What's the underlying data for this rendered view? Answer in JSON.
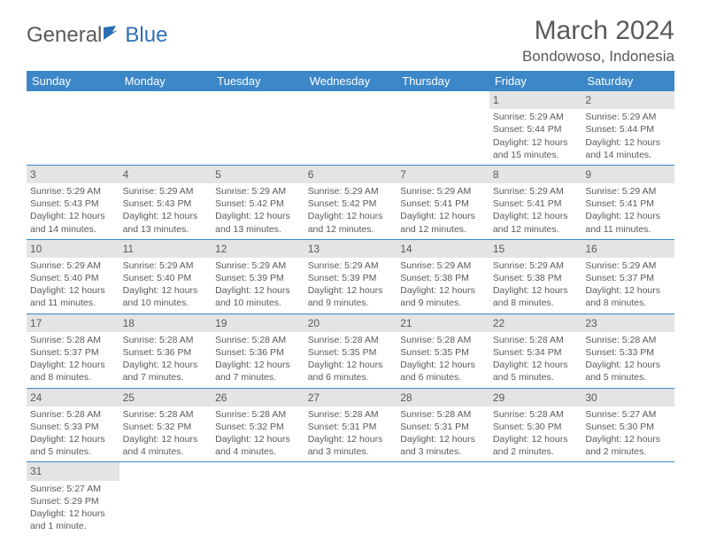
{
  "logo": {
    "part1": "General",
    "part2": "Blue"
  },
  "title": "March 2024",
  "location": "Bondowoso, Indonesia",
  "colors": {
    "header_bg": "#3b87c8",
    "header_text": "#ffffff",
    "daynum_bg": "#e4e4e4",
    "border": "#3b87c8",
    "text": "#5a5a5a",
    "logo_blue": "#2d6fb5"
  },
  "daysOfWeek": [
    "Sunday",
    "Monday",
    "Tuesday",
    "Wednesday",
    "Thursday",
    "Friday",
    "Saturday"
  ],
  "weeks": [
    [
      null,
      null,
      null,
      null,
      null,
      {
        "d": "1",
        "sr": "5:29 AM",
        "ss": "5:44 PM",
        "dl": "12 hours and 15 minutes."
      },
      {
        "d": "2",
        "sr": "5:29 AM",
        "ss": "5:44 PM",
        "dl": "12 hours and 14 minutes."
      }
    ],
    [
      {
        "d": "3",
        "sr": "5:29 AM",
        "ss": "5:43 PM",
        "dl": "12 hours and 14 minutes."
      },
      {
        "d": "4",
        "sr": "5:29 AM",
        "ss": "5:43 PM",
        "dl": "12 hours and 13 minutes."
      },
      {
        "d": "5",
        "sr": "5:29 AM",
        "ss": "5:42 PM",
        "dl": "12 hours and 13 minutes."
      },
      {
        "d": "6",
        "sr": "5:29 AM",
        "ss": "5:42 PM",
        "dl": "12 hours and 12 minutes."
      },
      {
        "d": "7",
        "sr": "5:29 AM",
        "ss": "5:41 PM",
        "dl": "12 hours and 12 minutes."
      },
      {
        "d": "8",
        "sr": "5:29 AM",
        "ss": "5:41 PM",
        "dl": "12 hours and 12 minutes."
      },
      {
        "d": "9",
        "sr": "5:29 AM",
        "ss": "5:41 PM",
        "dl": "12 hours and 11 minutes."
      }
    ],
    [
      {
        "d": "10",
        "sr": "5:29 AM",
        "ss": "5:40 PM",
        "dl": "12 hours and 11 minutes."
      },
      {
        "d": "11",
        "sr": "5:29 AM",
        "ss": "5:40 PM",
        "dl": "12 hours and 10 minutes."
      },
      {
        "d": "12",
        "sr": "5:29 AM",
        "ss": "5:39 PM",
        "dl": "12 hours and 10 minutes."
      },
      {
        "d": "13",
        "sr": "5:29 AM",
        "ss": "5:39 PM",
        "dl": "12 hours and 9 minutes."
      },
      {
        "d": "14",
        "sr": "5:29 AM",
        "ss": "5:38 PM",
        "dl": "12 hours and 9 minutes."
      },
      {
        "d": "15",
        "sr": "5:29 AM",
        "ss": "5:38 PM",
        "dl": "12 hours and 8 minutes."
      },
      {
        "d": "16",
        "sr": "5:29 AM",
        "ss": "5:37 PM",
        "dl": "12 hours and 8 minutes."
      }
    ],
    [
      {
        "d": "17",
        "sr": "5:28 AM",
        "ss": "5:37 PM",
        "dl": "12 hours and 8 minutes."
      },
      {
        "d": "18",
        "sr": "5:28 AM",
        "ss": "5:36 PM",
        "dl": "12 hours and 7 minutes."
      },
      {
        "d": "19",
        "sr": "5:28 AM",
        "ss": "5:36 PM",
        "dl": "12 hours and 7 minutes."
      },
      {
        "d": "20",
        "sr": "5:28 AM",
        "ss": "5:35 PM",
        "dl": "12 hours and 6 minutes."
      },
      {
        "d": "21",
        "sr": "5:28 AM",
        "ss": "5:35 PM",
        "dl": "12 hours and 6 minutes."
      },
      {
        "d": "22",
        "sr": "5:28 AM",
        "ss": "5:34 PM",
        "dl": "12 hours and 5 minutes."
      },
      {
        "d": "23",
        "sr": "5:28 AM",
        "ss": "5:33 PM",
        "dl": "12 hours and 5 minutes."
      }
    ],
    [
      {
        "d": "24",
        "sr": "5:28 AM",
        "ss": "5:33 PM",
        "dl": "12 hours and 5 minutes."
      },
      {
        "d": "25",
        "sr": "5:28 AM",
        "ss": "5:32 PM",
        "dl": "12 hours and 4 minutes."
      },
      {
        "d": "26",
        "sr": "5:28 AM",
        "ss": "5:32 PM",
        "dl": "12 hours and 4 minutes."
      },
      {
        "d": "27",
        "sr": "5:28 AM",
        "ss": "5:31 PM",
        "dl": "12 hours and 3 minutes."
      },
      {
        "d": "28",
        "sr": "5:28 AM",
        "ss": "5:31 PM",
        "dl": "12 hours and 3 minutes."
      },
      {
        "d": "29",
        "sr": "5:28 AM",
        "ss": "5:30 PM",
        "dl": "12 hours and 2 minutes."
      },
      {
        "d": "30",
        "sr": "5:27 AM",
        "ss": "5:30 PM",
        "dl": "12 hours and 2 minutes."
      }
    ],
    [
      {
        "d": "31",
        "sr": "5:27 AM",
        "ss": "5:29 PM",
        "dl": "12 hours and 1 minute."
      },
      null,
      null,
      null,
      null,
      null,
      null
    ]
  ],
  "labels": {
    "sunrise": "Sunrise:",
    "sunset": "Sunset:",
    "daylight": "Daylight:"
  }
}
